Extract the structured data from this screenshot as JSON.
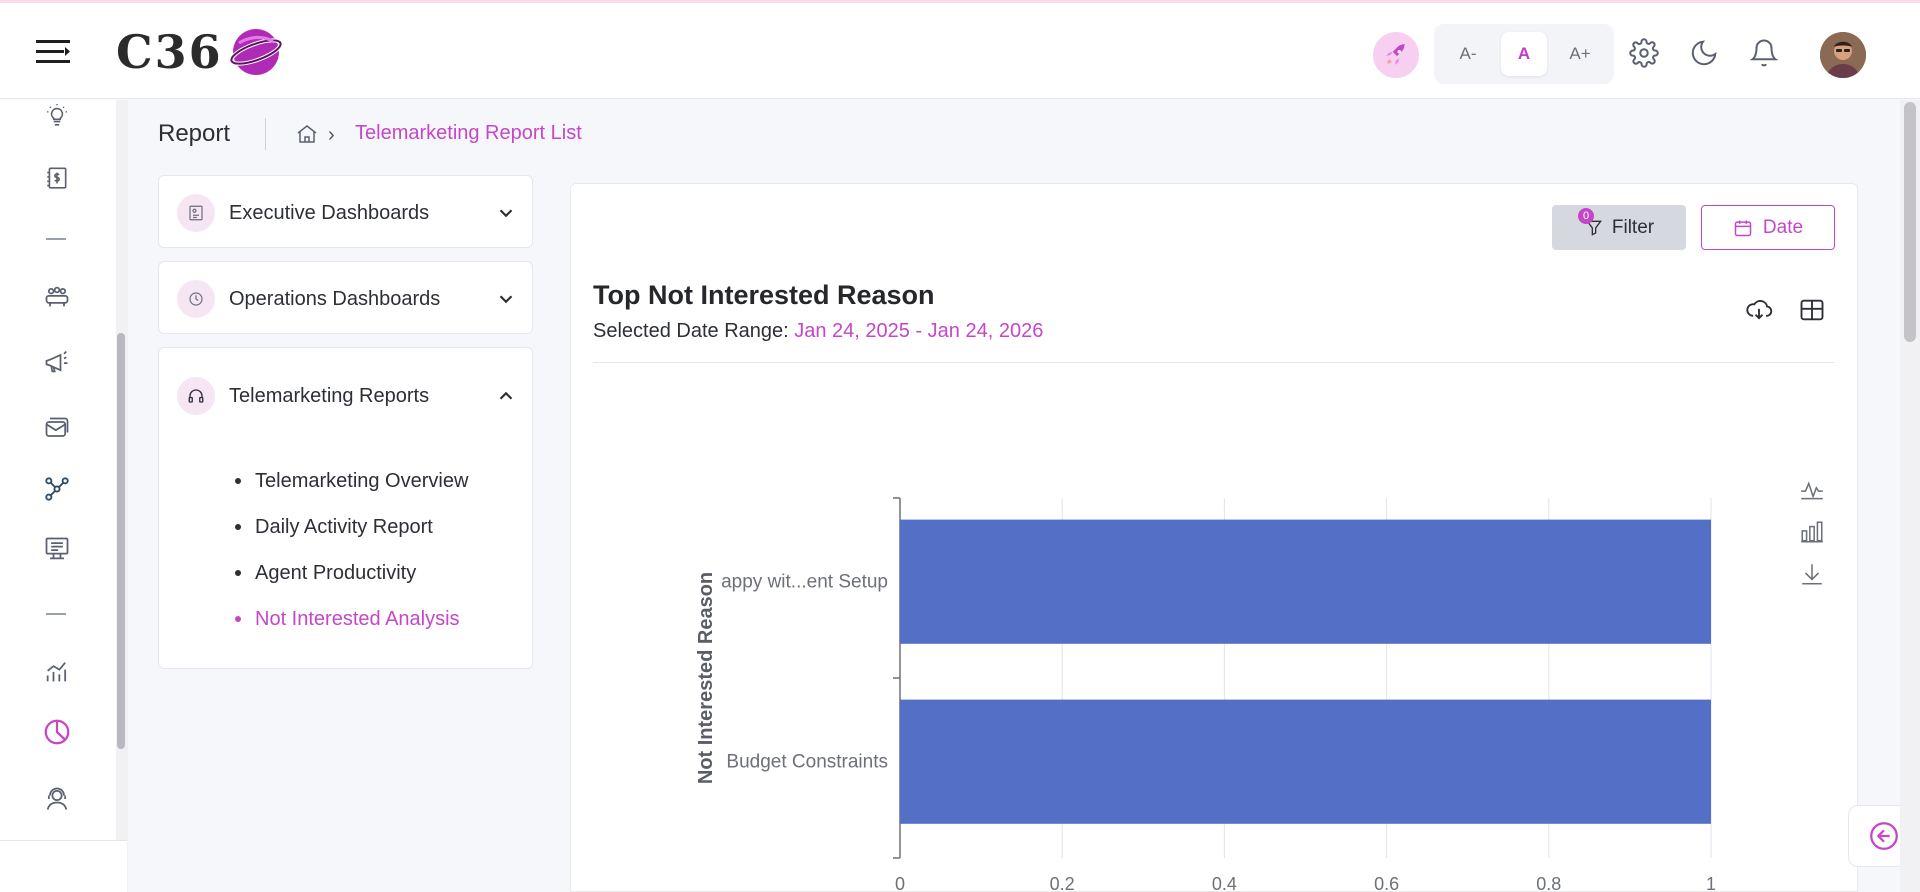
{
  "header": {
    "logo_text": "C36",
    "font_controls": [
      "A-",
      "A",
      "A+"
    ],
    "active_font_control": "A"
  },
  "breadcrumb": {
    "page_title": "Report",
    "current": "Telemarketing Report List"
  },
  "accordions": [
    {
      "label": "Executive Dashboards",
      "expanded": false
    },
    {
      "label": "Operations Dashboards",
      "expanded": false
    },
    {
      "label": "Telemarketing Reports",
      "expanded": true,
      "items": [
        "Telemarketing Overview",
        "Daily Activity Report",
        "Agent Productivity",
        "Not Interested Analysis"
      ],
      "active_item": "Not Interested Analysis"
    }
  ],
  "toolbar": {
    "filter_label": "Filter",
    "filter_count": "0",
    "date_label": "Date"
  },
  "report": {
    "title": "Top Not Interested Reason",
    "range_label": "Selected Date Range:",
    "range_value": "Jan 24, 2025 - Jan 24, 2026"
  },
  "colors": {
    "accent": "#c547c8",
    "bar": "#5470c6"
  },
  "chart_data": {
    "type": "bar",
    "orientation": "horizontal",
    "categories": [
      "Budget Constraints",
      "appy wit...ent Setup"
    ],
    "values": [
      1,
      1
    ],
    "ylabel": "Not Interested Reason",
    "xlim": [
      0,
      1
    ],
    "x_ticks": [
      "0",
      "0.2",
      "0.4",
      "0.6",
      "0.8",
      "1"
    ],
    "grid": true
  }
}
